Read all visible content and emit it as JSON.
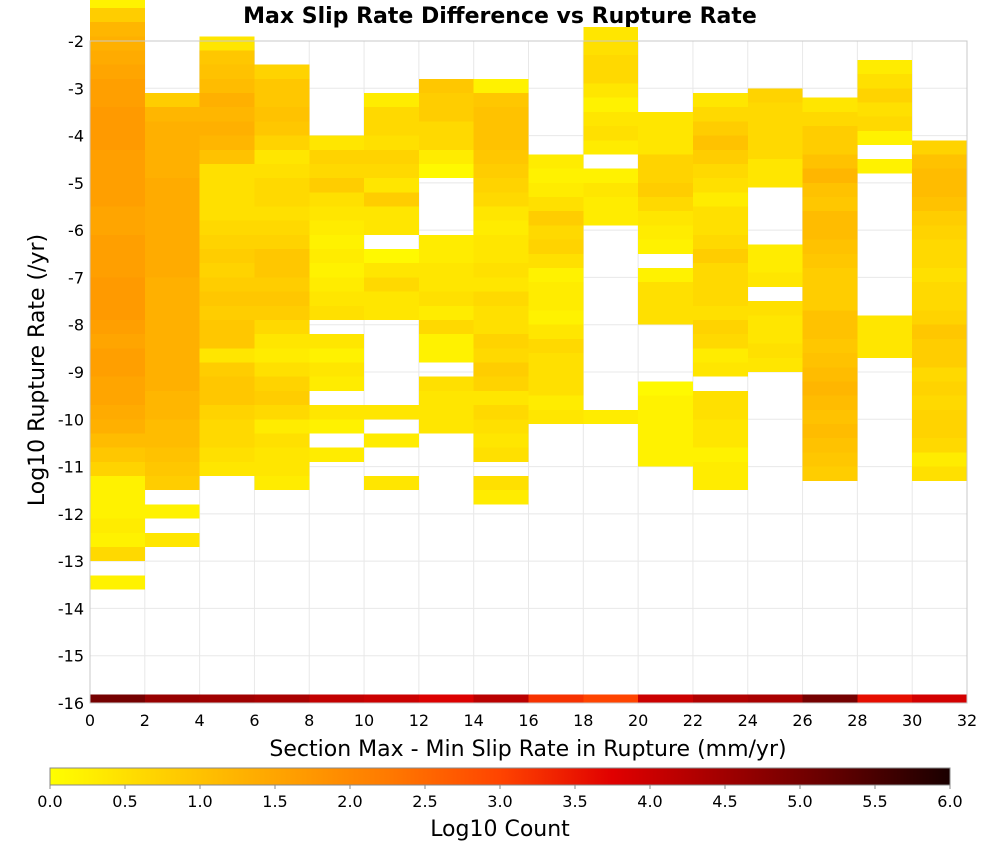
{
  "chart_data": {
    "type": "heatmap",
    "title": "Max Slip Rate Difference vs Rupture Rate",
    "xlabel": "Section Max - Min Slip Rate in Rupture (mm/yr)",
    "ylabel": "Log10 Rupture Rate (/yr)",
    "xlim": [
      0,
      32
    ],
    "ylim": [
      -16,
      -2
    ],
    "x_ticks": [
      "0",
      "2",
      "4",
      "6",
      "8",
      "10",
      "12",
      "14",
      "16",
      "18",
      "20",
      "22",
      "24",
      "26",
      "28",
      "30",
      "32"
    ],
    "y_ticks": [
      "-2",
      "-3",
      "-4",
      "-5",
      "-6",
      "-7",
      "-8",
      "-9",
      "-10",
      "-11",
      "-12",
      "-13",
      "-14",
      "-15",
      "-16"
    ],
    "bin_width_x": 2,
    "bin_height_y": 0.3,
    "grid": true,
    "colorbar": {
      "label": "Log10 Count",
      "range": [
        0,
        6
      ],
      "ticks": [
        "0.0",
        "0.5",
        "1.0",
        "1.5",
        "2.0",
        "2.5",
        "3.0",
        "3.5",
        "4.0",
        "4.5",
        "5.0",
        "5.5",
        "6.0"
      ],
      "colors": [
        "#ffff00",
        "#ffd000",
        "#ffa500",
        "#ff7a00",
        "#ff4400",
        "#e00000",
        "#a00000",
        "#600000",
        "#1a0000"
      ]
    },
    "marginal_row": {
      "y": -16,
      "values": [
        5.0,
        4.6,
        4.5,
        4.4,
        4.1,
        4.0,
        3.8,
        4.2,
        3.2,
        3.0,
        4.0,
        4.3,
        4.4,
        5.0,
        3.6,
        3.9
      ]
    },
    "columns": [
      {
        "x": 0,
        "start_y": -13.6,
        "values": [
          0.2,
          0,
          0.6,
          0.2,
          0.3,
          0.2,
          0.2,
          0.2,
          0.7,
          0.9,
          1.1,
          1.3,
          1.4,
          1.5,
          1.5,
          1.6,
          1.6,
          1.5,
          1.6,
          1.7,
          1.7,
          1.7,
          1.6,
          1.6,
          1.6,
          1.5,
          1.5,
          1.6,
          1.6,
          1.6,
          1.6,
          1.7,
          1.7,
          1.7,
          1.6,
          1.6,
          1.5,
          1.4,
          1.3,
          1.2,
          0.8,
          0.2
        ]
      },
      {
        "x": 2,
        "start_y": -12.7,
        "values": [
          0.4,
          0,
          0.2,
          0,
          0.8,
          0.9,
          1.0,
          1.1,
          1.1,
          1.2,
          1.2,
          1.3,
          1.3,
          1.3,
          1.3,
          1.3,
          1.3,
          1.3,
          1.3,
          1.4,
          1.4,
          1.4,
          1.4,
          1.4,
          1.4,
          1.4,
          1.3,
          1.3,
          1.3,
          1.3,
          1.2,
          0.8
        ]
      },
      {
        "x": 4,
        "start_y": -11.2,
        "values": [
          0.4,
          0.5,
          0.6,
          0.6,
          0.7,
          0.9,
          0.9,
          0.8,
          0.4,
          0.9,
          0.9,
          0.8,
          0.9,
          0.8,
          0.7,
          0.8,
          0.7,
          0.6,
          0.5,
          0.5,
          0.5,
          0.5,
          1.0,
          1.2,
          1.3,
          1.2,
          1.3,
          1.1,
          1.0,
          0.9,
          0.4
        ]
      },
      {
        "x": 6,
        "start_y": -11.5,
        "values": [
          0.3,
          0.4,
          0.4,
          0.5,
          0.3,
          0.6,
          0.8,
          0.7,
          0.5,
          0.3,
          0.4,
          0.6,
          0.8,
          0.9,
          0.8,
          0.9,
          0.9,
          0.7,
          0.6,
          0.5,
          0.6,
          0.6,
          0.5,
          0.4,
          0.7,
          0.9,
          1.0,
          0.9,
          0.9,
          0.7
        ]
      },
      {
        "x": 8,
        "start_y": -10.9,
        "values": [
          0.3,
          0,
          0.2,
          0.4,
          0,
          0.3,
          0.4,
          0.2,
          0.4,
          0,
          0.5,
          0.4,
          0.3,
          0.2,
          0.3,
          0.2,
          0.3,
          0.4,
          0.5,
          0.8,
          0.6,
          0.7,
          0.4
        ]
      },
      {
        "x": 10,
        "start_y": -11.5,
        "values": [
          0.4,
          0,
          0,
          0.3,
          0,
          0.4,
          0,
          0,
          0,
          0,
          0,
          0,
          0.4,
          0.4,
          0.6,
          0.4,
          0.1,
          0,
          0.4,
          0.4,
          0.8,
          0.4,
          0.6,
          0.7,
          0.5,
          0.6,
          0.6,
          0.3
        ]
      },
      {
        "x": 12,
        "start_y": -10.3,
        "values": [
          0.4,
          0.4,
          0.4,
          0.5,
          0,
          0.2,
          0.2,
          0.6,
          0.3,
          0.5,
          0.4,
          0.4,
          0.3,
          0.3,
          0,
          0,
          0,
          0,
          0.1,
          0.3,
          0.6,
          0.6,
          0.8,
          0.8,
          0.9
        ]
      },
      {
        "x": 14,
        "start_y": -11.8,
        "values": [
          0.3,
          0.5,
          0,
          0.5,
          0.4,
          0.5,
          0.6,
          0.4,
          0.7,
          0.8,
          0.6,
          0.7,
          0.5,
          0.5,
          0.6,
          0.4,
          0.5,
          0.4,
          0.4,
          0.3,
          0.4,
          0.6,
          0.7,
          0.8,
          0.9,
          1.0,
          1.0,
          1.0,
          0.9,
          0.2
        ]
      },
      {
        "x": 16,
        "start_y": -10.1,
        "values": [
          0.4,
          0.3,
          0.5,
          0.5,
          0.5,
          0.6,
          0.4,
          0.2,
          0.3,
          0.3,
          0.2,
          0.5,
          0.7,
          0.6,
          0.8,
          0.5,
          0.3,
          0.2,
          0.3
        ]
      },
      {
        "x": 18,
        "start_y": -10.1,
        "values": [
          0.3,
          0,
          0,
          0,
          0,
          0,
          0,
          0,
          0,
          0,
          0,
          0,
          0,
          0,
          0.3,
          0.3,
          0.4,
          0.2,
          0,
          0.3,
          0.5,
          0.4,
          0.2,
          0.4,
          0.6,
          0.6,
          0.5,
          0.4
        ]
      },
      {
        "x": 20,
        "start_y": -11.0,
        "values": [
          0.2,
          0.2,
          0.2,
          0.2,
          0.2,
          0.1,
          0,
          0,
          0,
          0,
          0.5,
          0.5,
          0.5,
          0.2,
          0,
          0.2,
          0.3,
          0.4,
          0.6,
          0.8,
          0.7,
          0.7,
          0.4,
          0.4,
          0.4
        ]
      },
      {
        "x": 22,
        "start_y": -11.5,
        "values": [
          0.3,
          0.3,
          0.2,
          0.4,
          0.4,
          0.5,
          0.5,
          0,
          0.4,
          0.3,
          0.6,
          0.7,
          0.5,
          0.6,
          0.6,
          0.6,
          0.8,
          0.6,
          0.5,
          0.5,
          0.3,
          0.5,
          0.6,
          0.8,
          1.0,
          0.8,
          0.6,
          0.4
        ]
      },
      {
        "x": 24,
        "start_y": -9.0,
        "values": [
          0.4,
          0.5,
          0.4,
          0.4,
          0.5,
          0,
          0.4,
          0.3,
          0.3,
          0,
          0,
          0,
          0,
          0.4,
          0.4,
          0.6,
          0.6,
          0.6,
          0.6,
          0.7
        ]
      },
      {
        "x": 26,
        "start_y": -11.3,
        "values": [
          0.8,
          0.9,
          1.0,
          1.1,
          1.0,
          1.1,
          1.2,
          1.1,
          1.0,
          0.9,
          1.0,
          1.0,
          0.8,
          0.8,
          0.8,
          0.9,
          1.0,
          1.1,
          1.1,
          0.9,
          1.0,
          1.2,
          1.0,
          0.8,
          0.8,
          0.6,
          0.4
        ]
      },
      {
        "x": 28,
        "start_y": -8.7,
        "values": [
          0.4,
          0.4,
          0.4,
          0,
          0,
          0,
          0,
          0,
          0,
          0,
          0,
          0,
          0,
          0.2,
          0,
          0.2,
          0.6,
          0.5,
          0.7,
          0.5,
          0.3
        ]
      },
      {
        "x": 30,
        "start_y": -11.3,
        "values": [
          0.5,
          0.3,
          0.6,
          0.7,
          0.7,
          0.6,
          0.7,
          0.6,
          0.8,
          0.8,
          0.9,
          0.7,
          0.6,
          0.6,
          0.5,
          0.6,
          0.6,
          0.7,
          0.8,
          1.0,
          1.1,
          1.1,
          1.0,
          0.7
        ]
      }
    ]
  }
}
